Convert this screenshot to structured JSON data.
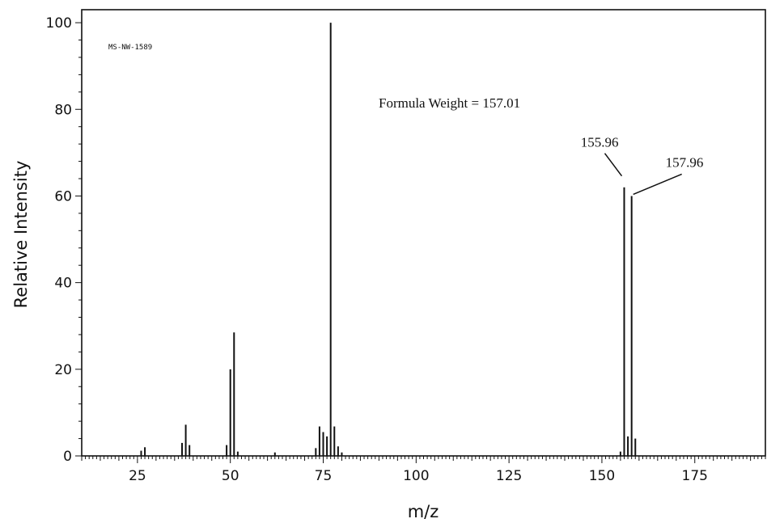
{
  "chart_data": {
    "type": "bar",
    "title": "",
    "xlabel": "m/z",
    "ylabel": "Relative Intensity",
    "xlim": [
      10,
      194
    ],
    "ylim": [
      0,
      103
    ],
    "xticks": [
      25,
      50,
      75,
      100,
      125,
      150,
      175
    ],
    "yticks": [
      0,
      20,
      40,
      60,
      80,
      100
    ],
    "grid": false,
    "spectrum_id": "MS-NW-1589",
    "formula_weight_label": "Formula Weight = 157.01",
    "peak_labels": [
      {
        "text": "155.96",
        "mz": 156,
        "intensity": 62
      },
      {
        "text": "157.96",
        "mz": 158,
        "intensity": 60
      }
    ],
    "peaks": [
      {
        "mz": 26,
        "intensity": 1.2
      },
      {
        "mz": 27,
        "intensity": 2.0
      },
      {
        "mz": 37,
        "intensity": 3.0
      },
      {
        "mz": 38,
        "intensity": 7.2
      },
      {
        "mz": 39,
        "intensity": 2.5
      },
      {
        "mz": 49,
        "intensity": 2.5
      },
      {
        "mz": 50,
        "intensity": 20.0
      },
      {
        "mz": 51,
        "intensity": 28.5
      },
      {
        "mz": 52,
        "intensity": 1.0
      },
      {
        "mz": 62,
        "intensity": 0.8
      },
      {
        "mz": 73,
        "intensity": 1.8
      },
      {
        "mz": 74,
        "intensity": 6.8
      },
      {
        "mz": 75,
        "intensity": 5.5
      },
      {
        "mz": 76,
        "intensity": 4.5
      },
      {
        "mz": 77,
        "intensity": 100.0
      },
      {
        "mz": 78,
        "intensity": 6.8
      },
      {
        "mz": 79,
        "intensity": 2.2
      },
      {
        "mz": 80,
        "intensity": 0.8
      },
      {
        "mz": 155,
        "intensity": 1.0
      },
      {
        "mz": 156,
        "intensity": 62.0
      },
      {
        "mz": 157,
        "intensity": 4.5
      },
      {
        "mz": 158,
        "intensity": 60.0
      },
      {
        "mz": 159,
        "intensity": 4.0
      }
    ]
  }
}
